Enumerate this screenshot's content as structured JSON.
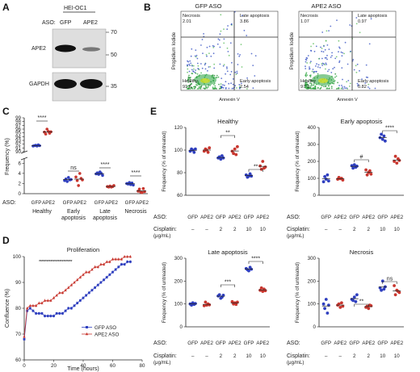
{
  "figure": {
    "panels": {
      "A": "A",
      "B": "B",
      "C": "C",
      "D": "D",
      "E": "E"
    }
  },
  "panel_a": {
    "cell_line": "HEI-OC1",
    "aso_label": "ASO:",
    "lanes": [
      "GFP",
      "APE2"
    ],
    "bands": [
      {
        "protein": "APE2",
        "intensity": [
          1.0,
          0.35
        ]
      },
      {
        "protein": "GAPDH",
        "intensity": [
          1.0,
          1.0
        ]
      }
    ],
    "markers": [
      "70",
      "50",
      "35"
    ]
  },
  "panel_b": {
    "plots": [
      {
        "title": "GFP ASO",
        "q_necrosis": "Necrosis",
        "v_necrosis": "2.01",
        "q_late": "Late apoptosis",
        "v_late": "3.86",
        "q_healthy": "Healthy",
        "v_healthy": "91.6",
        "q_early": "Early apoptosis",
        "v_early": "2.54"
      },
      {
        "title": "APE2 ASO",
        "q_necrosis": "Necrosis",
        "v_necrosis": "1.07",
        "q_late": "Late apoptosis",
        "v_late": "0.97",
        "q_healthy": "Healthy",
        "v_healthy": "97.1",
        "q_early": "Early apoptosis",
        "v_early": "0.82"
      }
    ],
    "xlabel": "Annexin V",
    "ylabel": "Propidium Iodide"
  },
  "chart_data": [
    {
      "id": "C",
      "type": "scatter",
      "ylabel": "Frequency (%)",
      "groups": [
        "Healthy",
        "Early apoptosis",
        "Late apoptosis",
        "Necrosis"
      ],
      "aso": [
        "GFP",
        "APE2"
      ],
      "aso_label": "ASO:",
      "colors": {
        "GFP": "#2f3fbf",
        "APE2": "#c8372f"
      },
      "upper_yticks": [
        "90",
        "91",
        "92",
        "93",
        "94",
        "95",
        "96",
        "97",
        "98",
        "99"
      ],
      "lower_yticks": [
        "0",
        "2",
        "4",
        "6"
      ],
      "series": [
        {
          "name": "GFP",
          "values": [
            [
              91.5,
              91.6,
              91.7,
              91.5,
              91.8,
              91.6
            ],
            [
              2.6,
              2.9,
              2.4,
              3.2,
              2.7,
              2.8
            ],
            [
              3.9,
              4.1,
              3.8,
              4.3,
              4.0,
              3.6
            ],
            [
              2.0,
              1.9,
              2.2,
              1.8,
              2.1,
              1.7
            ]
          ]
        },
        {
          "name": "APE2",
          "values": [
            [
              95.2,
              94.7,
              96.0,
              95.4,
              94.9,
              95.3
            ],
            [
              3.3,
              2.6,
              1.6,
              4.0,
              3.0,
              2.7
            ],
            [
              1.4,
              1.3,
              1.5,
              1.3,
              1.4,
              1.6
            ],
            [
              0.5,
              0.9,
              0.3,
              0.2,
              1.0,
              0.4
            ]
          ]
        }
      ],
      "significance": [
        "****",
        "ns",
        "****",
        "****"
      ]
    },
    {
      "id": "D",
      "type": "line",
      "title": "Proliferation",
      "xlabel": "Time (hours)",
      "ylabel": "Confluence (%)",
      "xlim": [
        0,
        80
      ],
      "ylim": [
        60,
        100
      ],
      "xticks": [
        "0",
        "20",
        "40",
        "60",
        "80"
      ],
      "yticks": [
        "60",
        "70",
        "80",
        "90",
        "100"
      ],
      "x": [
        0,
        2,
        4,
        6,
        8,
        10,
        12,
        14,
        16,
        18,
        20,
        22,
        24,
        26,
        28,
        30,
        32,
        34,
        36,
        38,
        40,
        42,
        44,
        46,
        48,
        50,
        52,
        54,
        56,
        58,
        60,
        62,
        64,
        66,
        68,
        70,
        72
      ],
      "series": [
        {
          "name": "GFP ASO",
          "color": "#2f3fbf",
          "values": [
            68,
            79,
            80,
            79,
            78,
            78,
            78,
            77,
            77,
            77,
            77,
            78,
            78,
            78,
            79,
            80,
            80,
            81,
            82,
            83,
            84,
            85,
            86,
            87,
            88,
            89,
            90,
            91,
            92,
            93,
            94,
            95,
            96,
            97,
            97,
            98,
            98
          ]
        },
        {
          "name": "APE2 ASO",
          "color": "#c8372f",
          "values": [
            69,
            80,
            81,
            81,
            81,
            82,
            82,
            83,
            83,
            83,
            84,
            85,
            86,
            86,
            87,
            88,
            89,
            90,
            91,
            92,
            93,
            94,
            94,
            95,
            96,
            96,
            97,
            97,
            98,
            98,
            99,
            99,
            99,
            99,
            100,
            100,
            100
          ]
        }
      ],
      "stars": "**************************"
    },
    {
      "id": "E-healthy",
      "type": "scatter",
      "title": "Healthy",
      "ylabel": "Frequency (% of untreated)",
      "ylim": [
        60,
        120
      ],
      "yticks": [
        "60",
        "80",
        "100",
        "120"
      ],
      "aso": [
        "GFP",
        "APE2",
        "GFP",
        "APE2",
        "GFP",
        "APE2"
      ],
      "cisplatin": [
        "–",
        "–",
        "2",
        "2",
        "10",
        "10"
      ],
      "values": [
        [
          99,
          101,
          100,
          98,
          101
        ],
        [
          99,
          101,
          100,
          98,
          102
        ],
        [
          93,
          94,
          92,
          95,
          93
        ],
        [
          99,
          97,
          101,
          96,
          103
        ],
        [
          78,
          76,
          77,
          79,
          77
        ],
        [
          86,
          83,
          90,
          84,
          85
        ]
      ],
      "significance": [
        "**",
        "**"
      ]
    },
    {
      "id": "E-early",
      "type": "scatter",
      "title": "Early apoptosis",
      "ylabel": "Frequency (% of untreated)",
      "ylim": [
        0,
        400
      ],
      "yticks": [
        "0",
        "100",
        "200",
        "300",
        "400"
      ],
      "aso": [
        "GFP",
        "APE2",
        "GFP",
        "APE2",
        "GFP",
        "APE2"
      ],
      "cisplatin": [
        "–",
        "–",
        "2",
        "2",
        "10",
        "10"
      ],
      "values": [
        [
          80,
          110,
          95,
          120,
          85
        ],
        [
          95,
          105,
          98,
          100,
          90
        ],
        [
          175,
          160,
          180,
          165,
          172
        ],
        [
          150,
          120,
          135,
          145,
          125
        ],
        [
          340,
          360,
          330,
          350,
          320
        ],
        [
          200,
          230,
          190,
          215,
          205
        ]
      ],
      "significance": [
        "#",
        "****"
      ]
    },
    {
      "id": "E-late",
      "type": "scatter",
      "title": "Late apoptosis",
      "ylabel": "Frequency (% of untreated)",
      "ylim": [
        0,
        300
      ],
      "yticks": [
        "0",
        "100",
        "200",
        "300"
      ],
      "aso": [
        "GFP",
        "APE2",
        "GFP",
        "APE2",
        "GFP",
        "APE2"
      ],
      "cisplatin": [
        "–",
        "–",
        "2",
        "2",
        "10",
        "10"
      ],
      "values": [
        [
          100,
          95,
          105,
          98,
          102
        ],
        [
          92,
          108,
          95,
          100,
          96
        ],
        [
          135,
          140,
          125,
          130,
          138
        ],
        [
          110,
          100,
          105,
          98,
          108
        ],
        [
          255,
          250,
          245,
          260,
          252
        ],
        [
          160,
          170,
          155,
          165,
          158
        ]
      ],
      "significance": [
        "***",
        "****"
      ]
    },
    {
      "id": "E-necrosis",
      "type": "scatter",
      "title": "Necrosis",
      "ylabel": "Frequency (% of untreated)",
      "ylim": [
        0,
        300
      ],
      "yticks": [
        "0",
        "100",
        "200",
        "300"
      ],
      "aso": [
        "GFP",
        "APE2",
        "GFP",
        "APE2",
        "GFP",
        "APE2"
      ],
      "cisplatin": [
        "–",
        "–",
        "2",
        "2",
        "10",
        "10"
      ],
      "values": [
        [
          100,
          80,
          120,
          60,
          95
        ],
        [
          95,
          100,
          85,
          105,
          90
        ],
        [
          120,
          115,
          130,
          110,
          140
        ],
        [
          85,
          90,
          80,
          95,
          92
        ],
        [
          170,
          160,
          200,
          165,
          175
        ],
        [
          180,
          140,
          160,
          155,
          150
        ]
      ],
      "significance": [
        "**",
        "ns"
      ]
    }
  ],
  "labels": {
    "aso_label": "ASO:",
    "cisplatin_label": "Cisplatin:",
    "cisplatin_unit": "(μg/mL)"
  }
}
